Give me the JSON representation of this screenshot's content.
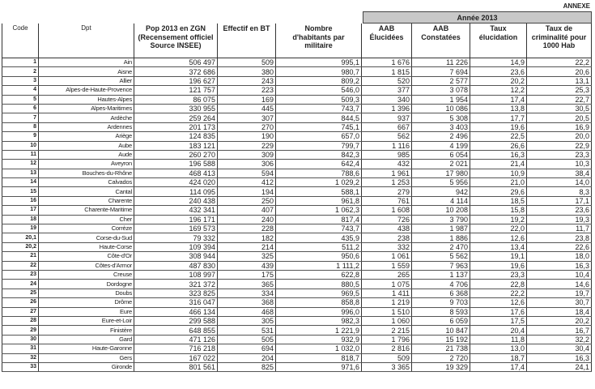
{
  "annexe": "ANNEXE",
  "year_label": "Année  2013",
  "headers": [
    "Code",
    "Dpt",
    "Pop  2013 en ZGN\n(Recensement officiel\nSource INSEE)",
    "Effectif en BT",
    "Nombre\nd'habitants par\nmilitaire",
    "AAB\nÉlucidées",
    "AAB\nConstatées",
    "Taux\nélucidation",
    "Taux de\ncriminalité pour\n1000 Hab"
  ],
  "rows": [
    [
      "1",
      "Ain",
      "506 497",
      "509",
      "995,1",
      "1 676",
      "11 226",
      "14,9",
      "22,2"
    ],
    [
      "2",
      "Aisne",
      "372 686",
      "380",
      "980,7",
      "1 815",
      "7 694",
      "23,6",
      "20,6"
    ],
    [
      "3",
      "Allier",
      "196 627",
      "243",
      "809,2",
      "520",
      "2 577",
      "20,2",
      "13,1"
    ],
    [
      "4",
      "Alpes-de-Haute-Provence",
      "121 757",
      "223",
      "546,0",
      "377",
      "3 078",
      "12,2",
      "25,3"
    ],
    [
      "5",
      "Hautes-Alpes",
      "86 075",
      "169",
      "509,3",
      "340",
      "1 954",
      "17,4",
      "22,7"
    ],
    [
      "6",
      "Alpes-Maritimes",
      "330 955",
      "445",
      "743,7",
      "1 396",
      "10 086",
      "13,8",
      "30,5"
    ],
    [
      "7",
      "Ardèche",
      "259 264",
      "307",
      "844,5",
      "937",
      "5 308",
      "17,7",
      "20,5"
    ],
    [
      "8",
      "Ardennes",
      "201 173",
      "270",
      "745,1",
      "667",
      "3 403",
      "19,6",
      "16,9"
    ],
    [
      "9",
      "Ariège",
      "124 835",
      "190",
      "657,0",
      "562",
      "2 496",
      "22,5",
      "20,0"
    ],
    [
      "10",
      "Aube",
      "183 121",
      "229",
      "799,7",
      "1 116",
      "4 199",
      "26,6",
      "22,9"
    ],
    [
      "11",
      "Aude",
      "260 270",
      "309",
      "842,3",
      "985",
      "6 054",
      "16,3",
      "23,3"
    ],
    [
      "12",
      "Aveyron",
      "196 588",
      "306",
      "642,4",
      "432",
      "2 021",
      "21,4",
      "10,3"
    ],
    [
      "13",
      "Bouches-du-Rhône",
      "468 413",
      "594",
      "788,6",
      "1 961",
      "17 980",
      "10,9",
      "38,4"
    ],
    [
      "14",
      "Calvados",
      "424 020",
      "412",
      "1 029,2",
      "1 253",
      "5 956",
      "21,0",
      "14,0"
    ],
    [
      "15",
      "Cantal",
      "114 095",
      "194",
      "588,1",
      "279",
      "942",
      "29,6",
      "8,3"
    ],
    [
      "16",
      "Charente",
      "240 438",
      "250",
      "961,8",
      "761",
      "4 114",
      "18,5",
      "17,1"
    ],
    [
      "17",
      "Charente-Maritime",
      "432 341",
      "407",
      "1 062,3",
      "1 608",
      "10 208",
      "15,8",
      "23,6"
    ],
    [
      "18",
      "Cher",
      "196 171",
      "240",
      "817,4",
      "726",
      "3 790",
      "19,2",
      "19,3"
    ],
    [
      "19",
      "Corrèze",
      "169 573",
      "228",
      "743,7",
      "438",
      "1 987",
      "22,0",
      "11,7"
    ],
    [
      "20,1",
      "Corse-du-Sud",
      "79 332",
      "182",
      "435,9",
      "238",
      "1 886",
      "12,6",
      "23,8"
    ],
    [
      "20,2",
      "Haute-Corse",
      "109 394",
      "214",
      "511,2",
      "332",
      "2 470",
      "13,4",
      "22,6"
    ],
    [
      "21",
      "Côte-d'Or",
      "308 944",
      "325",
      "950,6",
      "1 061",
      "5 562",
      "19,1",
      "18,0"
    ],
    [
      "22",
      "Côtes-d'Armor",
      "487 830",
      "439",
      "1 111,2",
      "1 559",
      "7 963",
      "19,6",
      "16,3"
    ],
    [
      "23",
      "Creuse",
      "108 997",
      "175",
      "622,8",
      "265",
      "1 137",
      "23,3",
      "10,4"
    ],
    [
      "24",
      "Dordogne",
      "321 372",
      "365",
      "880,5",
      "1 075",
      "4 706",
      "22,8",
      "14,6"
    ],
    [
      "25",
      "Doubs",
      "323 825",
      "334",
      "969,5",
      "1 411",
      "6 368",
      "22,2",
      "19,7"
    ],
    [
      "26",
      "Drôme",
      "316 047",
      "368",
      "858,8",
      "1 219",
      "9 703",
      "12,6",
      "30,7"
    ],
    [
      "27",
      "Eure",
      "466 134",
      "468",
      "996,0",
      "1 510",
      "8 593",
      "17,6",
      "18,4"
    ],
    [
      "28",
      "Eure-et-Loir",
      "299 588",
      "305",
      "982,3",
      "1 060",
      "6 059",
      "17,5",
      "20,2"
    ],
    [
      "29",
      "Finistère",
      "648 855",
      "531",
      "1 221,9",
      "2 215",
      "10 847",
      "20,4",
      "16,7"
    ],
    [
      "30",
      "Gard",
      "471 126",
      "505",
      "932,9",
      "1 796",
      "15 192",
      "11,8",
      "32,2"
    ],
    [
      "31",
      "Haute-Garonne",
      "716 218",
      "694",
      "1 032,0",
      "2 816",
      "21 738",
      "13,0",
      "30,4"
    ],
    [
      "32",
      "Gers",
      "167 022",
      "204",
      "818,7",
      "509",
      "2 720",
      "18,7",
      "16,3"
    ],
    [
      "33",
      "Gironde",
      "801 561",
      "825",
      "971,6",
      "3 365",
      "19 329",
      "17,4",
      "24,1"
    ]
  ]
}
